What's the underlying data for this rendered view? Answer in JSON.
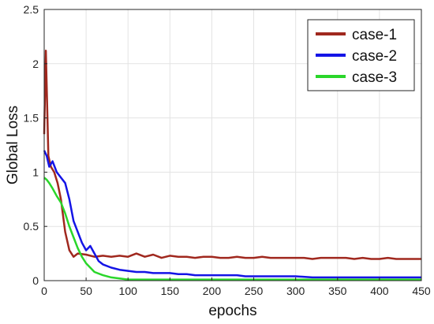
{
  "chart_data": {
    "type": "line",
    "title": "",
    "xlabel": "epochs",
    "ylabel": "Global Loss",
    "xlim": [
      0,
      450
    ],
    "ylim": [
      0,
      2.5
    ],
    "xticks": [
      0,
      50,
      100,
      150,
      200,
      250,
      300,
      350,
      400,
      450
    ],
    "yticks": [
      0,
      0.5,
      1,
      1.5,
      2,
      2.5
    ],
    "ytick_labels": [
      "0",
      "0.5",
      "1",
      "1.5",
      "2",
      "2.5"
    ],
    "grid": true,
    "legend_position": "top-right",
    "series": [
      {
        "name": "case-1",
        "color": "#a0281e",
        "x": [
          0,
          2,
          5,
          8,
          12,
          16,
          20,
          25,
          30,
          35,
          40,
          50,
          60,
          70,
          80,
          90,
          100,
          110,
          120,
          130,
          140,
          150,
          160,
          170,
          180,
          190,
          200,
          210,
          220,
          230,
          240,
          250,
          260,
          270,
          280,
          290,
          300,
          310,
          320,
          330,
          340,
          350,
          360,
          370,
          380,
          390,
          400,
          410,
          420,
          430,
          440,
          450
        ],
        "y": [
          1.35,
          2.12,
          1.15,
          1.05,
          1.0,
          0.9,
          0.75,
          0.45,
          0.28,
          0.22,
          0.25,
          0.24,
          0.22,
          0.23,
          0.22,
          0.23,
          0.22,
          0.25,
          0.22,
          0.24,
          0.21,
          0.23,
          0.22,
          0.22,
          0.21,
          0.22,
          0.22,
          0.21,
          0.21,
          0.22,
          0.21,
          0.21,
          0.22,
          0.21,
          0.21,
          0.21,
          0.21,
          0.21,
          0.2,
          0.21,
          0.21,
          0.21,
          0.21,
          0.2,
          0.21,
          0.2,
          0.2,
          0.21,
          0.2,
          0.2,
          0.2,
          0.2
        ]
      },
      {
        "name": "case-2",
        "color": "#1414e6",
        "x": [
          0,
          3,
          6,
          10,
          15,
          20,
          25,
          30,
          35,
          40,
          45,
          50,
          55,
          60,
          65,
          70,
          80,
          90,
          100,
          110,
          120,
          130,
          140,
          150,
          160,
          170,
          180,
          190,
          200,
          210,
          220,
          230,
          240,
          250,
          260,
          270,
          280,
          290,
          300,
          320,
          340,
          360,
          380,
          400,
          420,
          440,
          450
        ],
        "y": [
          1.2,
          1.15,
          1.05,
          1.1,
          1.0,
          0.95,
          0.9,
          0.75,
          0.55,
          0.45,
          0.35,
          0.28,
          0.32,
          0.25,
          0.18,
          0.15,
          0.12,
          0.1,
          0.09,
          0.08,
          0.08,
          0.07,
          0.07,
          0.07,
          0.06,
          0.06,
          0.05,
          0.05,
          0.05,
          0.05,
          0.05,
          0.05,
          0.04,
          0.04,
          0.04,
          0.04,
          0.04,
          0.04,
          0.04,
          0.03,
          0.03,
          0.03,
          0.03,
          0.03,
          0.03,
          0.03,
          0.03
        ]
      },
      {
        "name": "case-3",
        "color": "#2ad62a",
        "x": [
          0,
          3,
          6,
          10,
          15,
          20,
          25,
          30,
          35,
          40,
          45,
          50,
          55,
          60,
          70,
          80,
          90,
          100,
          120,
          150,
          200,
          250,
          300,
          350,
          400,
          450
        ],
        "y": [
          0.95,
          0.93,
          0.9,
          0.85,
          0.78,
          0.72,
          0.62,
          0.5,
          0.4,
          0.3,
          0.22,
          0.16,
          0.12,
          0.08,
          0.05,
          0.03,
          0.02,
          0.01,
          0.01,
          0.01,
          0.01,
          0.01,
          0.01,
          0.01,
          0.01,
          0.01
        ]
      }
    ]
  }
}
